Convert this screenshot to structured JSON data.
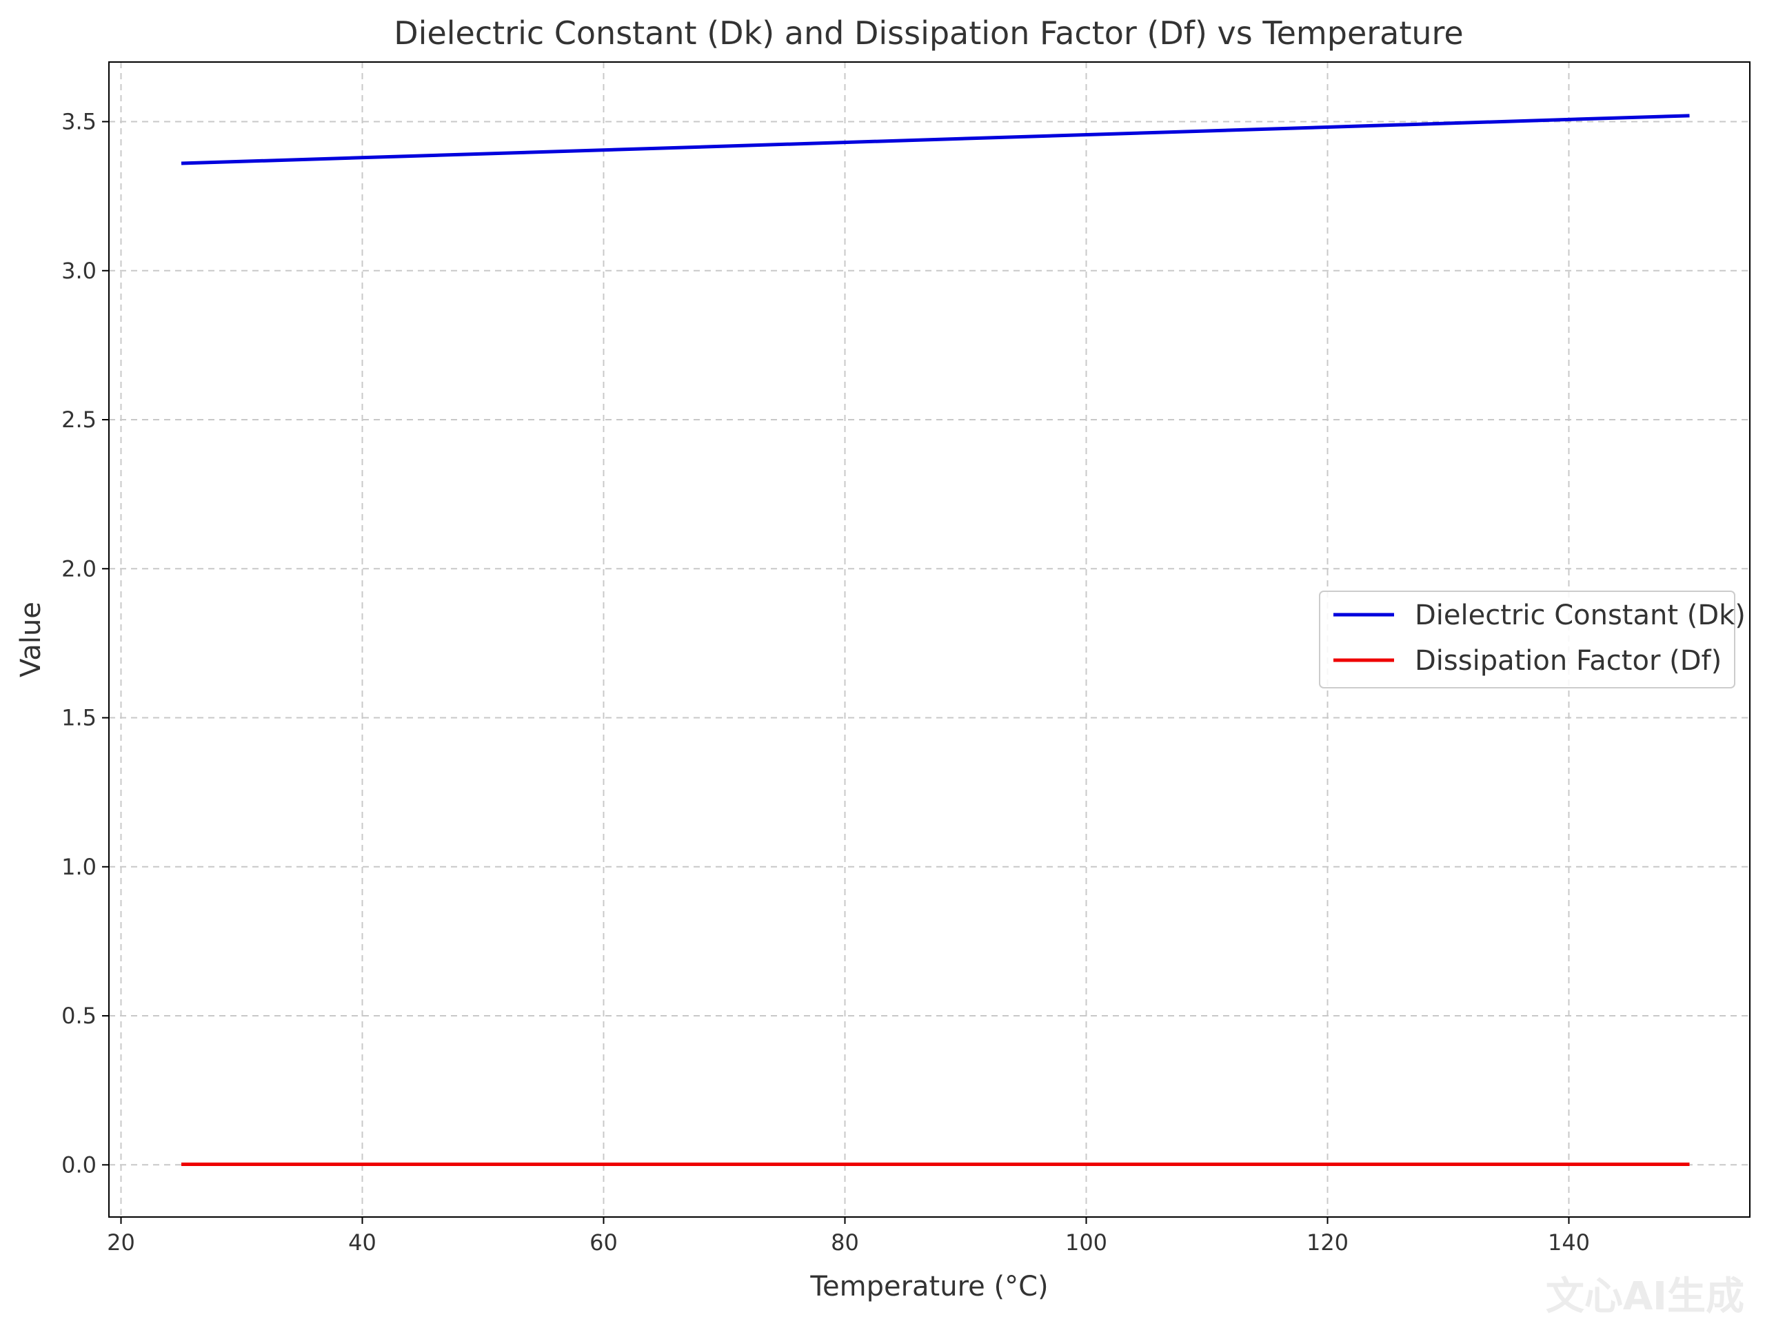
{
  "chart_data": {
    "type": "line",
    "title": "Dielectric Constant (Dk) and Dissipation Factor (Df) vs Temperature",
    "xlabel": "Temperature (°C)",
    "ylabel": "Value",
    "xlim": [
      19,
      155
    ],
    "ylim": [
      -0.175,
      3.7
    ],
    "xticks": [
      20,
      40,
      60,
      80,
      100,
      120,
      140
    ],
    "yticks": [
      0.0,
      0.5,
      1.0,
      1.5,
      2.0,
      2.5,
      3.0,
      3.5
    ],
    "xtick_labels": [
      "20",
      "40",
      "60",
      "80",
      "100",
      "120",
      "140"
    ],
    "ytick_labels": [
      "0.0",
      "0.5",
      "1.0",
      "1.5",
      "2.0",
      "2.5",
      "3.0",
      "3.5"
    ],
    "grid": true,
    "legend_position": "center-right",
    "series": [
      {
        "name": "Dielectric Constant (Dk)",
        "color": "#0000dd",
        "x": [
          25,
          150
        ],
        "y": [
          3.36,
          3.52
        ]
      },
      {
        "name": "Dissipation Factor (Df)",
        "color": "#ee0000",
        "x": [
          25,
          150
        ],
        "y": [
          0.002,
          0.002
        ]
      }
    ]
  },
  "watermark": "文心AI生成"
}
